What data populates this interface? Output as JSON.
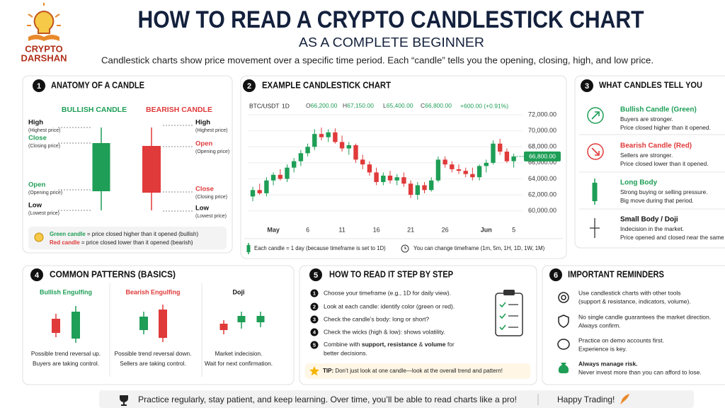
{
  "header": {
    "logo": [
      "CRYPTO",
      "DARSHAN"
    ],
    "title": "HOW TO READ A CRYPTO CANDLESTICK CHART",
    "subtitle": "AS A COMPLETE BEGINNER",
    "intro": "Candlestick charts show price movement over a specific time period. Each “candle” tells you the opening, closing, high, and low price."
  },
  "anatomy": {
    "number": "1",
    "title": "ANATOMY OF A CANDLE",
    "bullish": {
      "title": "BULLISH CANDLE",
      "labels": [
        {
          "name": "High",
          "note": "(Highest price)"
        },
        {
          "name": "Close",
          "note": "(Closing price)"
        },
        {
          "name": "Open",
          "note": "(Opening price)"
        },
        {
          "name": "Low",
          "note": "(Lowest price)"
        }
      ]
    },
    "bearish": {
      "title": "BEARISH CANDLE",
      "labels": [
        {
          "name": "High",
          "note": "(Highest price)"
        },
        {
          "name": "Open",
          "note": "(Opening price)"
        },
        {
          "name": "Close",
          "note": "(Closing price)"
        },
        {
          "name": "Low",
          "note": "(Lowest price)"
        }
      ]
    },
    "notes": [
      {
        "key": "Green candle",
        "text": " = price closed higher than it opened (bullish)"
      },
      {
        "key": "Red candle",
        "text": " = price closed lower than it opened (bearish)"
      }
    ]
  },
  "example": {
    "number": "2",
    "title": "EXAMPLE CANDLESTICK CHART",
    "notes": [
      "Each candle = 1 day (because timeframe is set to 1D)",
      "You can change timeframe (1m, 5m, 1H, 1D, 1W, 1M)"
    ]
  },
  "chart_data": {
    "type": "candlestick",
    "symbol": "BTC/USDT",
    "timeframe": "1D",
    "ohlc_header": [
      {
        "key": "O",
        "value": "66,200.00"
      },
      {
        "key": "H",
        "value": "67,150.00"
      },
      {
        "key": "L",
        "value": "65,400.00"
      },
      {
        "key": "C",
        "value": "66,800.00"
      }
    ],
    "change": "+600.00 (+0.91%)",
    "categories": [
      null,
      null,
      null,
      "May",
      null,
      null,
      null,
      null,
      "6",
      null,
      null,
      null,
      null,
      "11",
      null,
      null,
      null,
      null,
      "16",
      null,
      null,
      null,
      null,
      "21",
      null,
      null,
      null,
      null,
      "26",
      null,
      null,
      null,
      null,
      null,
      "Jun",
      null,
      null,
      null,
      "5"
    ],
    "open": [
      61800,
      62600,
      62200,
      63800,
      64500,
      64000,
      65400,
      66200,
      67200,
      68000,
      69600,
      69200,
      69800,
      68600,
      67800,
      68200,
      66400,
      65800,
      64800,
      63600,
      64400,
      63800,
      64200,
      63400,
      62000,
      63200,
      62600,
      63800,
      66400,
      65800,
      65200,
      65000,
      64600,
      64200,
      65600,
      66000,
      68400,
      67400,
      66200
    ],
    "high": [
      63000,
      63400,
      64200,
      64800,
      65200,
      65800,
      66600,
      67600,
      68400,
      70200,
      70400,
      70200,
      70300,
      69400,
      68600,
      68400,
      67000,
      66200,
      65400,
      64800,
      65000,
      64600,
      64800,
      63800,
      63600,
      63600,
      64200,
      66800,
      66800,
      66200,
      65800,
      65400,
      65400,
      65800,
      66400,
      68800,
      69000,
      67800,
      67150
    ],
    "low": [
      61200,
      62000,
      61800,
      63200,
      63800,
      63600,
      64800,
      65600,
      66800,
      67600,
      68800,
      68600,
      68400,
      67400,
      67000,
      66000,
      65200,
      64400,
      63200,
      63200,
      63400,
      63200,
      63000,
      61600,
      61400,
      62200,
      62400,
      63600,
      65400,
      64800,
      64600,
      64200,
      63800,
      63800,
      64800,
      65800,
      67000,
      66000,
      65400
    ],
    "close": [
      62600,
      62200,
      63800,
      64500,
      64000,
      65400,
      66200,
      67200,
      68000,
      69600,
      69200,
      69800,
      68600,
      67800,
      68200,
      66400,
      65800,
      64800,
      63600,
      64400,
      63800,
      64200,
      63400,
      62000,
      63200,
      62600,
      63800,
      66400,
      65800,
      65200,
      65000,
      64600,
      64200,
      65600,
      66000,
      68400,
      67400,
      66200,
      66800
    ],
    "last_price_label": "66,800.00",
    "ylim": [
      59000,
      72800
    ],
    "yticks": [
      {
        "value": 60000,
        "label": "60,000.00"
      },
      {
        "value": 62000,
        "label": "62,000.00"
      },
      {
        "value": 64000,
        "label": "64,000.00"
      },
      {
        "value": 66000,
        "label": "66,000.00"
      },
      {
        "value": 68000,
        "label": "68,000.00"
      },
      {
        "value": 70000,
        "label": "70,000.00"
      },
      {
        "value": 72000,
        "label": "72,000.00"
      }
    ],
    "up_color": "#1e9e56",
    "down_color": "#e03a3a",
    "grid": true
  },
  "signals": {
    "number": "3",
    "title": "WHAT CANDLES TELL YOU",
    "items": [
      {
        "title": "Bullish Candle (Green)",
        "lines": [
          "Buyers are stronger.",
          "Price closed higher than it opened."
        ]
      },
      {
        "title": "Bearish Candle (Red)",
        "lines": [
          "Sellers are stronger.",
          "Price closed lower than it opened."
        ]
      },
      {
        "title": "Long Body",
        "lines": [
          "Strong buying or selling pressure.",
          "Big move during that period."
        ]
      },
      {
        "title": "Small Body / Doji",
        "lines": [
          "Indecision in the market.",
          "Price opened and closed near the same"
        ]
      }
    ]
  },
  "patterns": {
    "number": "4",
    "title": "COMMON PATTERNS (BASICS)",
    "items": [
      {
        "name": "Bullish Engulfing",
        "lines": [
          "Possible trend reversal up.",
          "Buyers are taking control."
        ]
      },
      {
        "name": "Bearish Engulfing",
        "lines": [
          "Possible trend reversal down.",
          "Sellers are taking control."
        ]
      },
      {
        "name": "Doji",
        "lines": [
          "Market indecision.",
          "Wait for next confirmation."
        ]
      }
    ]
  },
  "steps": {
    "number": "5",
    "title": "HOW TO READ IT STEP BY STEP",
    "items": [
      {
        "number": "1",
        "text": "Choose your timeframe (e.g., 1D for daily view)."
      },
      {
        "number": "2",
        "text": "Look at each candle: identify color (green or red)."
      },
      {
        "number": "3",
        "text": "Check the candle’s body: long or short?"
      },
      {
        "number": "4",
        "text": "Check the wicks (high & low): shows volatility."
      },
      {
        "number": "5",
        "segments": [
          "Combine with ",
          "support, resistance",
          " & ",
          "volume",
          " for"
        ],
        "continuation": "better decisions."
      }
    ],
    "tip": {
      "key": "TIP:",
      "text": " Don’t just look at one candle—look at the overall trend and pattern!"
    }
  },
  "reminders": {
    "number": "6",
    "title": "IMPORTANT REMINDERS",
    "items": [
      [
        "Use candlestick charts with other tools",
        "(support & resistance, indicators, volume)."
      ],
      [
        "No single candle guarantees the market direction.",
        "Always confirm."
      ],
      [
        "Practice on demo accounts first.",
        "Experience is key."
      ],
      [
        "Always manage risk.",
        "Never invest more than you can afford to lose."
      ]
    ]
  },
  "footer": {
    "message": "Practice regularly, stay patient, and keep learning. Over time, you’ll be able to read charts like a pro!",
    "signoff": "Happy Trading!"
  }
}
